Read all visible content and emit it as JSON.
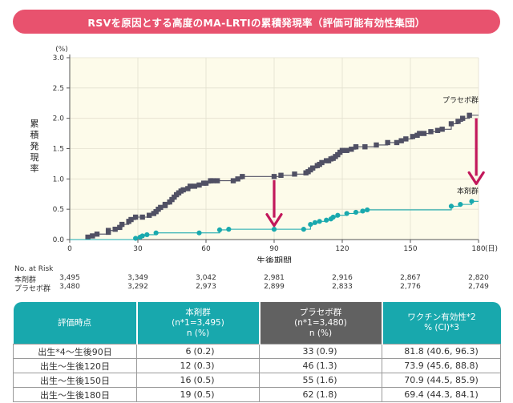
{
  "title": "RSVを原因とする高度のMA-LRTIの累積発現率（評価可能有効性集団）",
  "chart_data": {
    "type": "line",
    "ylabel": "累積発現率",
    "y_unit": "(%)",
    "xlabel": "生後期間",
    "x_unit": "(日)",
    "xlim": [
      0,
      180
    ],
    "ylim": [
      0,
      3.0
    ],
    "xticks": [
      0,
      30,
      60,
      90,
      120,
      150,
      180
    ],
    "yticks": [
      "0.0",
      "0.5",
      "1.0",
      "1.5",
      "2.0",
      "2.5",
      "3.0"
    ],
    "colors": {
      "placebo": "#505064",
      "drug": "#19a9ae",
      "arrow": "#c2185b"
    },
    "series": [
      {
        "name": "プラセボ群",
        "x": [
          0,
          8,
          10,
          12,
          17,
          17,
          20,
          22,
          23,
          26,
          27,
          29,
          32,
          35,
          37,
          38,
          39,
          40,
          42,
          42,
          44,
          45,
          46,
          47,
          48,
          49,
          50,
          52,
          53,
          55,
          57,
          59,
          60,
          62,
          63,
          65,
          72,
          74,
          76,
          90,
          93,
          99,
          104,
          105,
          106,
          107,
          109,
          110,
          111,
          113,
          114,
          115,
          116,
          117,
          118,
          119,
          120,
          122,
          124,
          126,
          130,
          135,
          140,
          144,
          146,
          148,
          151,
          153,
          154,
          156,
          159,
          162,
          164,
          168,
          171,
          173,
          176,
          180
        ],
        "y": [
          0,
          0.04,
          0.06,
          0.09,
          0.12,
          0.15,
          0.17,
          0.2,
          0.25,
          0.3,
          0.33,
          0.37,
          0.37,
          0.4,
          0.43,
          0.46,
          0.5,
          0.53,
          0.56,
          0.58,
          0.62,
          0.66,
          0.7,
          0.74,
          0.77,
          0.8,
          0.82,
          0.84,
          0.88,
          0.88,
          0.9,
          0.93,
          0.93,
          0.97,
          0.97,
          0.97,
          0.97,
          1.0,
          1.04,
          1.04,
          1.06,
          1.08,
          1.1,
          1.12,
          1.15,
          1.18,
          1.22,
          1.24,
          1.27,
          1.3,
          1.3,
          1.33,
          1.34,
          1.37,
          1.4,
          1.44,
          1.47,
          1.47,
          1.49,
          1.53,
          1.53,
          1.56,
          1.6,
          1.6,
          1.63,
          1.66,
          1.7,
          1.72,
          1.75,
          1.75,
          1.78,
          1.8,
          1.82,
          1.91,
          1.95,
          2.0,
          2.05,
          2.05
        ]
      },
      {
        "name": "本剤群",
        "x": [
          0,
          29,
          31,
          32,
          34,
          38,
          57,
          66,
          70,
          90,
          103,
          106,
          108,
          110,
          113,
          115,
          116,
          118,
          122,
          126,
          129,
          131,
          168,
          172,
          177,
          180
        ],
        "y": [
          0,
          0.02,
          0.04,
          0.06,
          0.08,
          0.11,
          0.11,
          0.16,
          0.17,
          0.17,
          0.17,
          0.25,
          0.28,
          0.3,
          0.32,
          0.34,
          0.37,
          0.4,
          0.43,
          0.45,
          0.47,
          0.49,
          0.55,
          0.58,
          0.63,
          0.63
        ]
      }
    ],
    "annotations": [
      "プラセボ群",
      "本剤群"
    ]
  },
  "at_risk": {
    "header": "No. at Risk",
    "timepoints": [
      0,
      30,
      60,
      90,
      120,
      150,
      180
    ],
    "rows": [
      {
        "label": "本剤群",
        "values": [
          "3,495",
          "3,349",
          "3,042",
          "2,981",
          "2,916",
          "2,867",
          "2,820"
        ]
      },
      {
        "label": "プラセボ群",
        "values": [
          "3,480",
          "3,292",
          "2,973",
          "2,899",
          "2,833",
          "2,776",
          "2,749"
        ]
      }
    ]
  },
  "table": {
    "headers": [
      [
        "評価時点"
      ],
      [
        "本剤群",
        "(n*1=3,495)",
        "n (%)"
      ],
      [
        "プラセボ群",
        "(n*1=3,480)",
        "n (%)"
      ],
      [
        "ワクチン有効性*2",
        "% (CI)*3"
      ]
    ],
    "rows": [
      {
        "label": "出生*4〜生後90日",
        "drug_n": "6",
        "drug_pct": "(0.2)",
        "placebo_n": "33",
        "placebo_pct": "(0.9)",
        "ve": "81.8 (40.6, 96.3)"
      },
      {
        "label": "出生〜生後120日",
        "drug_n": "12",
        "drug_pct": "(0.3)",
        "placebo_n": "46",
        "placebo_pct": "(1.3)",
        "ve": "73.9 (45.6, 88.8)"
      },
      {
        "label": "出生〜生後150日",
        "drug_n": "16",
        "drug_pct": "(0.5)",
        "placebo_n": "55",
        "placebo_pct": "(1.6)",
        "ve": "70.9 (44.5, 85.9)"
      },
      {
        "label": "出生〜生後180日",
        "drug_n": "19",
        "drug_pct": "(0.5)",
        "placebo_n": "62",
        "placebo_pct": "(1.8)",
        "ve": "69.4 (44.3, 84.1)"
      }
    ]
  }
}
